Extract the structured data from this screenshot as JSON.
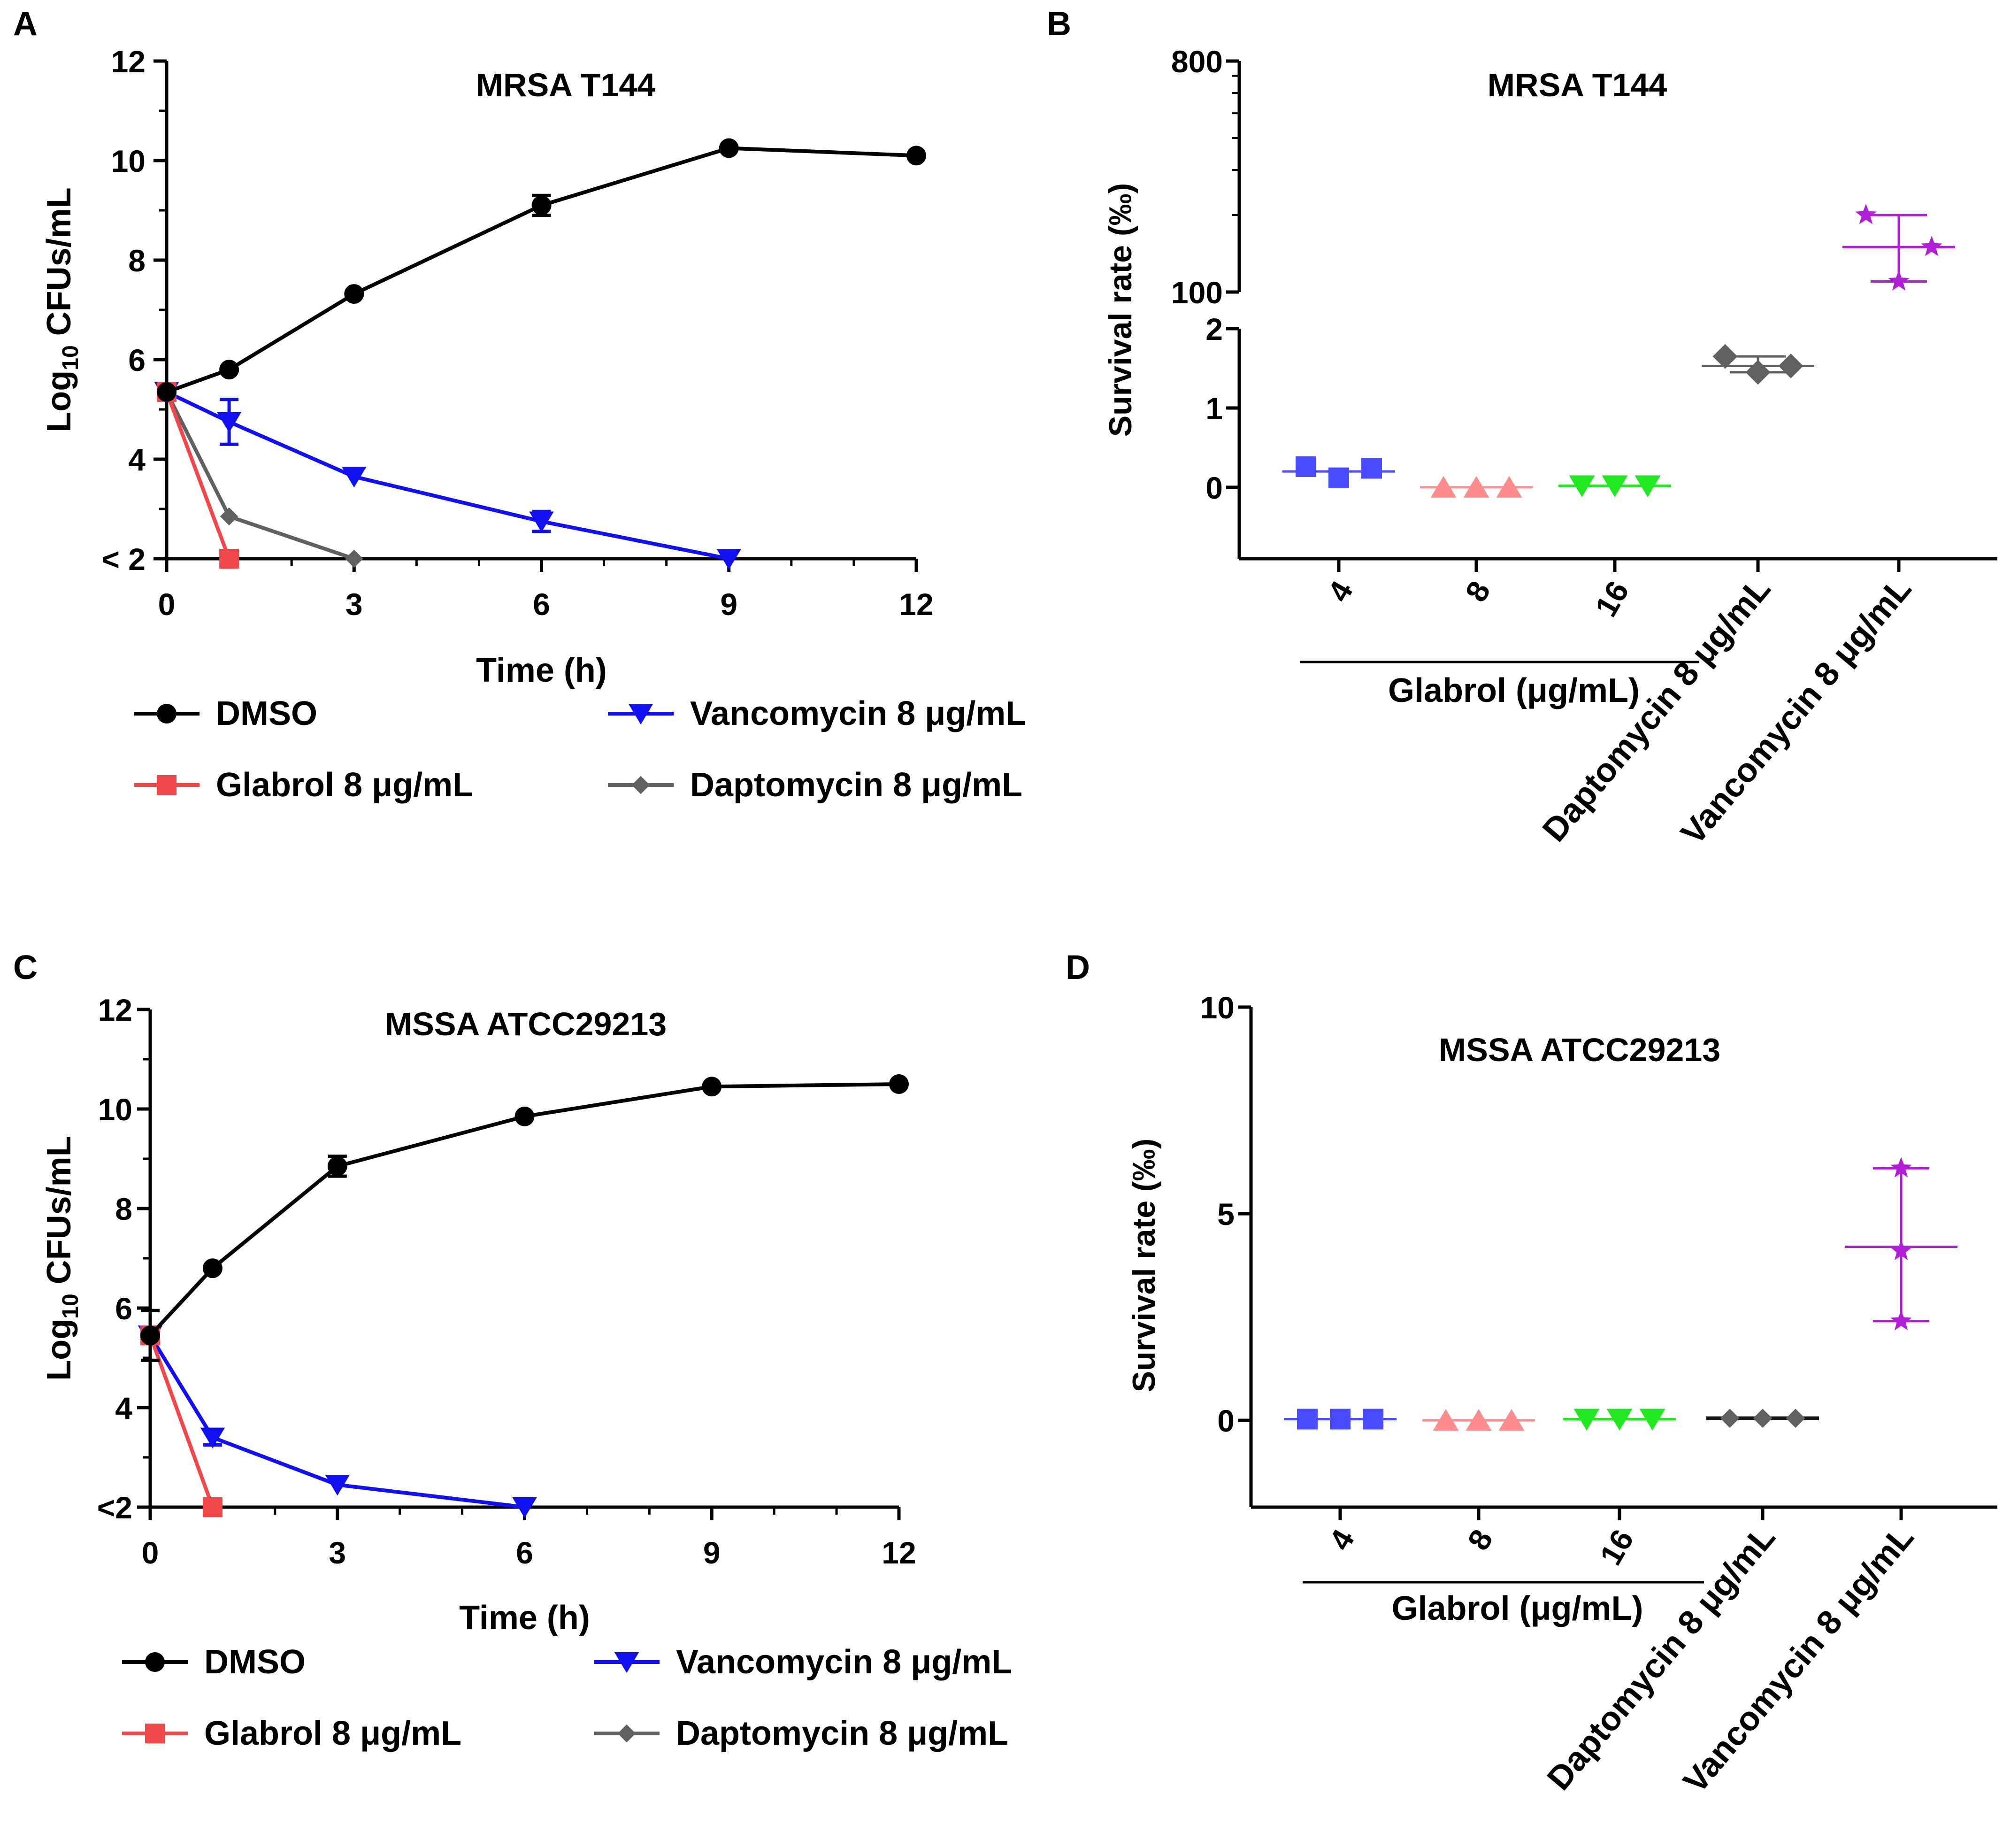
{
  "colors": {
    "dmso": "#000000",
    "glabrol": "#f0474a",
    "vancomycin": "#1010f0",
    "daptomycin": "#606060",
    "glabrol_4": "#4a4aff",
    "glabrol_8": "#ff8c8c",
    "glabrol_16": "#22e822",
    "vancomycin_star": "#b01ed6"
  },
  "legend": {
    "dmso": "DMSO",
    "glabrol": "Glabrol 8 μg/mL",
    "vancomycin": "Vancomycin 8 μg/mL",
    "daptomycin": "Daptomycin 8 μg/mL"
  },
  "chart_data": [
    {
      "panel": "A",
      "type": "line",
      "title": "MRSA  T144",
      "xlabel": "Time (h)",
      "ylabel_main": "Log",
      "ylabel_sub": "10",
      "ylabel_rest": " CFUs/mL",
      "xlim": [
        0,
        12
      ],
      "ylim": [
        2,
        12
      ],
      "x_ticks": [
        "0",
        "3",
        "6",
        "9",
        "12"
      ],
      "y_ticks": [
        "< 2",
        "4",
        "6",
        "8",
        "10",
        "12"
      ],
      "series": [
        {
          "name": "DMSO",
          "marker": "circle",
          "x": [
            0,
            1,
            3,
            6,
            9,
            12
          ],
          "y": [
            5.35,
            5.8,
            7.32,
            9.1,
            10.25,
            10.1
          ],
          "err": [
            0,
            0,
            0,
            0.2,
            0,
            0
          ]
        },
        {
          "name": "Glabrol 8 μg/mL",
          "marker": "square",
          "x": [
            0,
            1
          ],
          "y": [
            5.35,
            2.0
          ],
          "err": [
            0,
            0
          ]
        },
        {
          "name": "Vancomycin 8 μg/mL",
          "marker": "triangle-down",
          "x": [
            0,
            1,
            3,
            6,
            9
          ],
          "y": [
            5.35,
            4.75,
            3.65,
            2.75,
            2.0
          ],
          "err": [
            0,
            0.45,
            0,
            0.2,
            0
          ]
        },
        {
          "name": "Daptomycin 8 μg/mL",
          "marker": "diamond",
          "x": [
            0,
            1,
            3
          ],
          "y": [
            5.35,
            2.85,
            2.0
          ],
          "err": [
            0,
            0,
            0
          ]
        }
      ]
    },
    {
      "panel": "B",
      "type": "scatter",
      "title": "MRSA  T144",
      "ylabel": "Survival rate (‰)",
      "y_ticks_upper": [
        "100",
        "800"
      ],
      "y_ticks_lower": [
        "0",
        "1",
        "2"
      ],
      "ylim_lower": [
        -0.9,
        2.0
      ],
      "ylim_upper": [
        100,
        800
      ],
      "axis_break": true,
      "glabrol_group_label": "Glabrol (μg/mL)",
      "categories": [
        "4",
        "8",
        "16",
        "Daptomycin 8 μg/mL",
        "Vancomycin 8 μg/mL"
      ],
      "groups": [
        {
          "category": "4",
          "marker": "square",
          "values": [
            0.26,
            0.12,
            0.24
          ],
          "mean": 0.2
        },
        {
          "category": "8",
          "marker": "triangle-up",
          "values": [
            0.0,
            0.0,
            0.0
          ],
          "mean": 0.0
        },
        {
          "category": "16",
          "marker": "triangle-down",
          "values": [
            0.02,
            0.02,
            0.02
          ],
          "mean": 0.02
        },
        {
          "category": "Daptomycin 8 μg/mL",
          "marker": "diamond",
          "values": [
            1.65,
            1.45,
            1.53
          ],
          "mean": 1.53
        },
        {
          "category": "Vancomycin 8 μg/mL",
          "marker": "star",
          "values": [
            200,
            110,
            150
          ],
          "mean": 150
        }
      ]
    },
    {
      "panel": "C",
      "type": "line",
      "title": "MSSA ATCC29213",
      "xlabel": "Time (h)",
      "ylabel_main": "Log",
      "ylabel_sub": "10",
      "ylabel_rest": " CFUs/mL",
      "xlim": [
        0,
        12
      ],
      "ylim": [
        2,
        12
      ],
      "x_ticks": [
        "0",
        "3",
        "6",
        "9",
        "12"
      ],
      "y_ticks": [
        "<2",
        "4",
        "6",
        "8",
        "10",
        "12"
      ],
      "series": [
        {
          "name": "DMSO",
          "marker": "circle",
          "x": [
            0,
            1,
            3,
            6,
            9,
            12
          ],
          "y": [
            5.45,
            6.8,
            8.85,
            9.85,
            10.45,
            10.5
          ],
          "err": [
            0.5,
            0,
            0.2,
            0,
            0,
            0
          ]
        },
        {
          "name": "Glabrol 8 μg/mL",
          "marker": "square",
          "x": [
            0,
            1
          ],
          "y": [
            5.45,
            2.0
          ],
          "err": [
            0,
            0
          ]
        },
        {
          "name": "Vancomycin 8 μg/mL",
          "marker": "triangle-down",
          "x": [
            0,
            1,
            3,
            6
          ],
          "y": [
            5.45,
            3.4,
            2.45,
            2.0
          ],
          "err": [
            0,
            0.15,
            0,
            0
          ]
        },
        {
          "name": "Daptomycin 8 μg/mL",
          "marker": "diamond",
          "x": [
            0
          ],
          "y": [
            5.45
          ],
          "err": [
            0
          ]
        }
      ]
    },
    {
      "panel": "D",
      "type": "scatter",
      "title": "MSSA ATCC29213",
      "ylabel": "Survival rate (‰)",
      "y_ticks": [
        "0",
        "5",
        "10"
      ],
      "ylim": [
        -2.1,
        10
      ],
      "glabrol_group_label": "Glabrol (μg/mL)",
      "categories": [
        "4",
        "8",
        "16",
        "Daptomycin 8 μg/mL",
        "Vancomycin 8 μg/mL"
      ],
      "groups": [
        {
          "category": "4",
          "marker": "square",
          "values": [
            0.03,
            0.03,
            0.03
          ],
          "mean": 0.03
        },
        {
          "category": "8",
          "marker": "triangle-up",
          "values": [
            0.0,
            0.0,
            0.0
          ],
          "mean": 0.0
        },
        {
          "category": "16",
          "marker": "triangle-down",
          "values": [
            0.03,
            0.03,
            0.03
          ],
          "mean": 0.03
        },
        {
          "category": "Daptomycin 8 μg/mL",
          "marker": "diamond",
          "values": [
            0.05,
            0.05,
            0.05
          ],
          "mean": 0.05
        },
        {
          "category": "Vancomycin 8 μg/mL",
          "marker": "star",
          "values": [
            6.1,
            4.1,
            2.4
          ],
          "mean": 4.2
        }
      ]
    }
  ],
  "panel_letters": [
    "A",
    "B",
    "C",
    "D"
  ]
}
